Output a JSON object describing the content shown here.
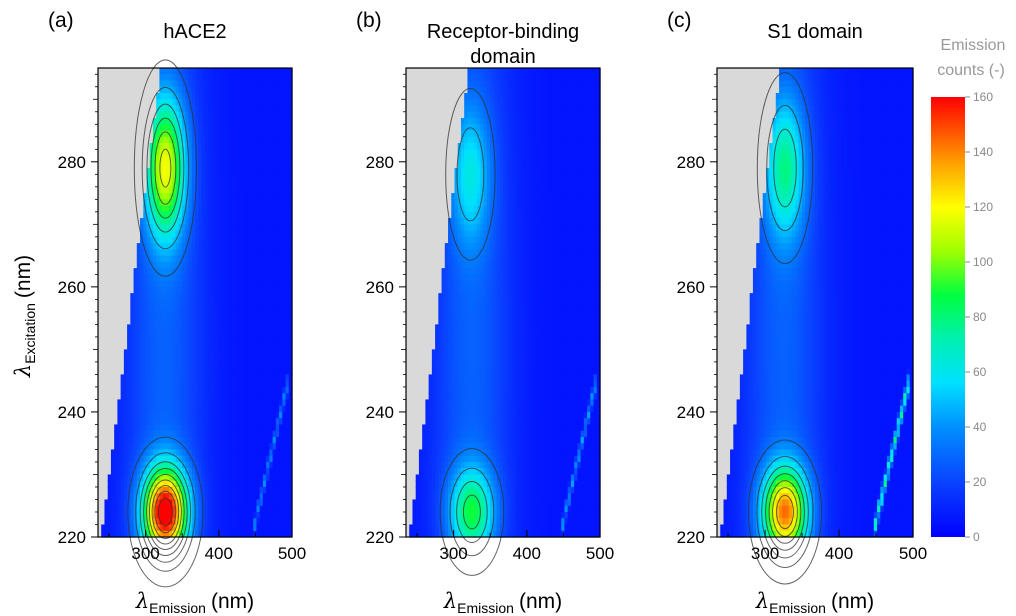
{
  "chart_data": [
    {
      "type": "heatmap",
      "panel_label": "(a)",
      "title": "hACE2",
      "xlabel": "λ",
      "xlabel_sub": "Emission",
      "xlabel_unit": "(nm)",
      "ylabel": "λ",
      "ylabel_sub": "Excitation",
      "ylabel_unit": "(nm)",
      "xlim": [
        235,
        500
      ],
      "ylim": [
        220,
        295
      ],
      "xticks": [
        "300",
        "400",
        "500"
      ],
      "yticks": [
        "220",
        "240",
        "260",
        "280"
      ],
      "peaks": [
        {
          "x": 327,
          "y": 224,
          "value": 150
        },
        {
          "x": 327,
          "y": 279,
          "value": 95
        }
      ],
      "scatter_band": {
        "x_start": 445,
        "x_end": 495,
        "value": 40
      }
    },
    {
      "type": "heatmap",
      "panel_label": "(b)",
      "title": "Receptor-binding domain",
      "xlabel": "λ",
      "xlabel_sub": "Emission",
      "xlabel_unit": "(nm)",
      "ylabel": "",
      "xlim": [
        235,
        500
      ],
      "ylim": [
        220,
        295
      ],
      "xticks": [
        "300",
        "400",
        "500"
      ],
      "yticks": [
        "220",
        "240",
        "260",
        "280"
      ],
      "peaks": [
        {
          "x": 325,
          "y": 224,
          "value": 65
        },
        {
          "x": 323,
          "y": 278,
          "value": 38
        }
      ],
      "scatter_band": {
        "x_start": 445,
        "x_end": 495,
        "value": 45
      }
    },
    {
      "type": "heatmap",
      "panel_label": "(c)",
      "title": "S1 domain",
      "xlabel": "λ",
      "xlabel_sub": "Emission",
      "xlabel_unit": "(nm)",
      "ylabel": "",
      "xlim": [
        235,
        500
      ],
      "ylim": [
        220,
        295
      ],
      "xticks": [
        "300",
        "400",
        "500"
      ],
      "yticks": [
        "220",
        "240",
        "260",
        "280"
      ],
      "peaks": [
        {
          "x": 327,
          "y": 224,
          "value": 120
        },
        {
          "x": 327,
          "y": 279,
          "value": 55
        }
      ],
      "scatter_band": {
        "x_start": 445,
        "x_end": 495,
        "value": 80
      }
    }
  ],
  "colorbar": {
    "title_line1": "Emission",
    "title_line2": "counts (-)",
    "range": [
      0,
      160
    ],
    "ticks": [
      "0",
      "20",
      "40",
      "60",
      "80",
      "100",
      "120",
      "140",
      "160"
    ]
  }
}
